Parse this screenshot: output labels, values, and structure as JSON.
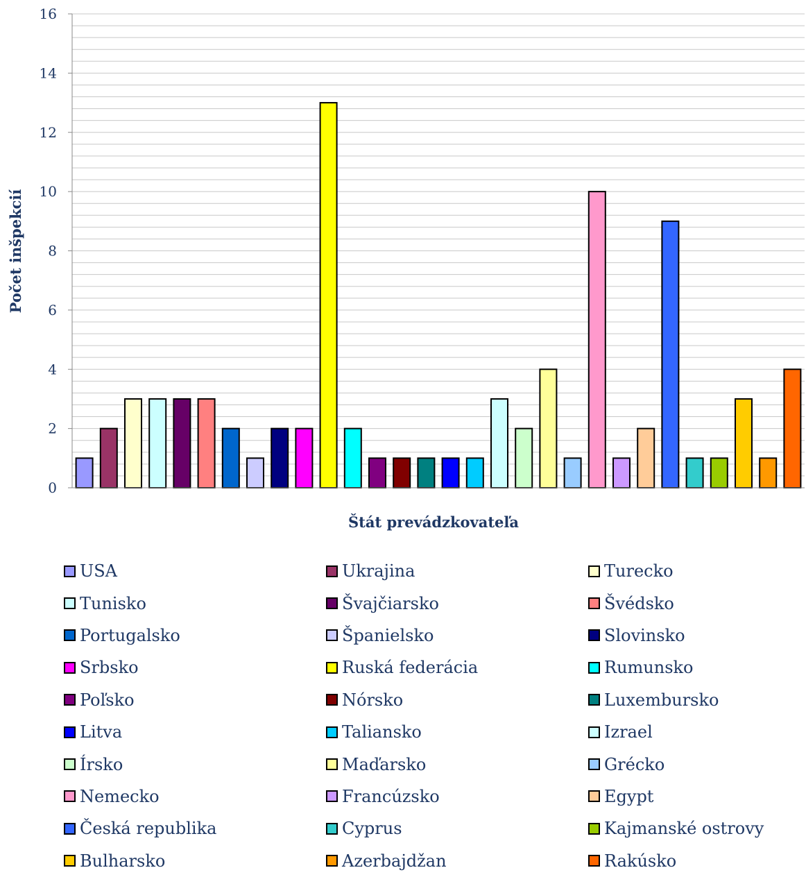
{
  "chart_data": {
    "type": "bar",
    "title": "",
    "xlabel": "Štát prevádzkovateľa",
    "ylabel": "Počet inšpekcií",
    "ylim": [
      0,
      16
    ],
    "yticks": [
      0,
      2,
      4,
      6,
      8,
      10,
      12,
      14,
      16
    ],
    "minor_gridlines": true,
    "legend_position": "bottom",
    "categories": [
      "USA",
      "Ukrajina",
      "Turecko",
      "Tunisko",
      "Švajčiarsko",
      "Švédsko",
      "Portugalsko",
      "Španielsko",
      "Slovinsko",
      "Srbsko",
      "Ruská federácia",
      "Rumunsko",
      "Poľsko",
      "Nórsko",
      "Luxembursko",
      "Litva",
      "Taliansko",
      "Izrael",
      "Írsko",
      "Maďarsko",
      "Grécko",
      "Nemecko",
      "Francúzsko",
      "Egypt",
      "Česká republika",
      "Cyprus",
      "Kajmanské ostrovy",
      "Bulharsko",
      "Azerbajdžan",
      "Rakúsko"
    ],
    "values": [
      1,
      2,
      3,
      3,
      3,
      3,
      2,
      1,
      2,
      2,
      13,
      2,
      1,
      1,
      1,
      1,
      1,
      3,
      2,
      4,
      1,
      10,
      1,
      2,
      9,
      1,
      1,
      3,
      1,
      4
    ],
    "colors": [
      "#9999ff",
      "#993366",
      "#ffffcc",
      "#ccffff",
      "#660066",
      "#ff8080",
      "#0066cc",
      "#ccccff",
      "#000080",
      "#ff00ff",
      "#ffff00",
      "#00ffff",
      "#800080",
      "#800000",
      "#008080",
      "#0000ff",
      "#00ccff",
      "#ccffff",
      "#ccffcc",
      "#ffff99",
      "#99ccff",
      "#ff99cc",
      "#cc99ff",
      "#ffcc99",
      "#3366ff",
      "#33cccc",
      "#99cc00",
      "#ffcc00",
      "#ff9900",
      "#ff6600"
    ]
  }
}
